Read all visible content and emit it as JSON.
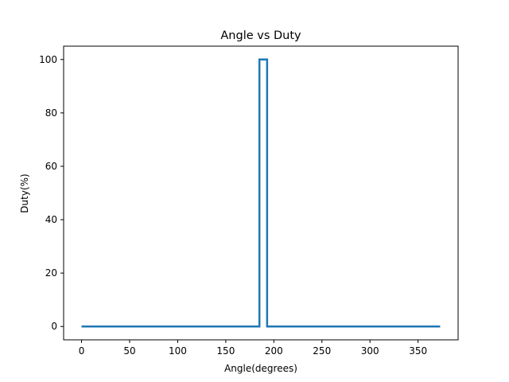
{
  "chart_data": {
    "type": "line",
    "title": "Angle vs Duty",
    "xlabel": "Angle(degrees)",
    "ylabel": "Duty(%)",
    "xlim": [
      -18.65,
      391.65
    ],
    "ylim": [
      -5,
      105
    ],
    "xticks": [
      0,
      50,
      100,
      150,
      200,
      250,
      300,
      350
    ],
    "yticks": [
      0,
      20,
      40,
      60,
      80,
      100
    ],
    "grid": false,
    "legend": "none",
    "series": [
      {
        "color": "#1f77b4",
        "step": true,
        "x": [
          0,
          185,
          185,
          193,
          193,
          373
        ],
        "y": [
          0,
          0,
          100,
          100,
          0,
          0
        ]
      }
    ]
  }
}
